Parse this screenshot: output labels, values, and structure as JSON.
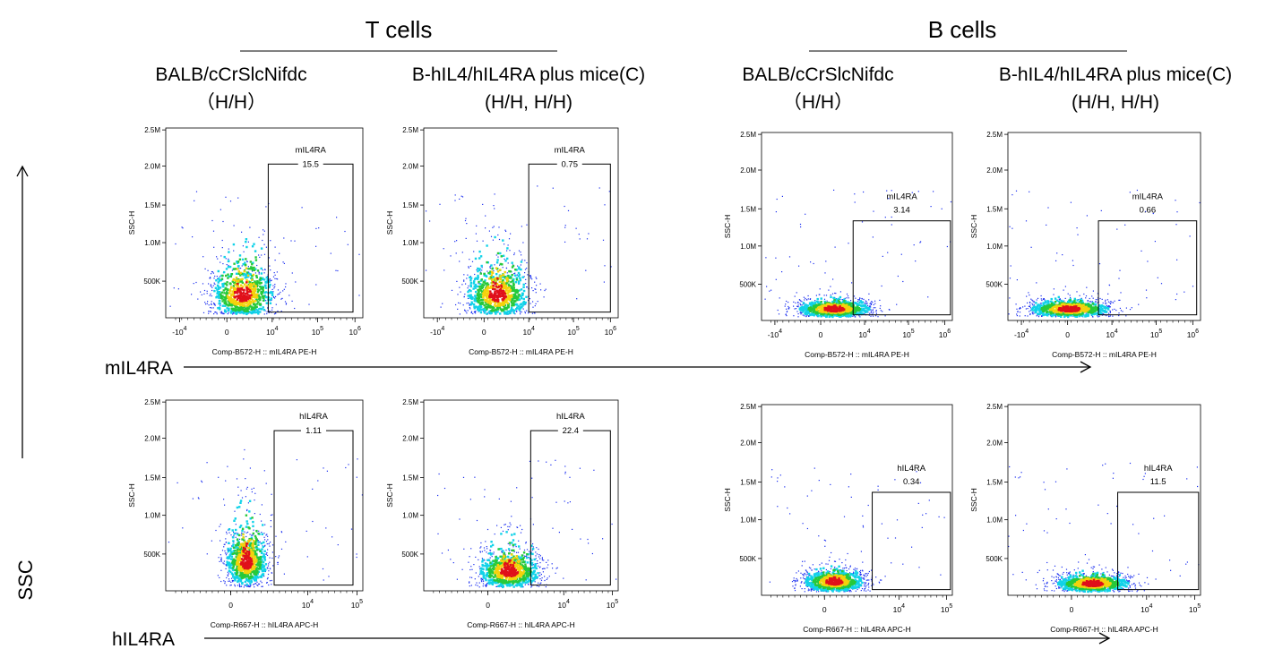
{
  "groups": [
    {
      "title": "T cells"
    },
    {
      "title": "B cells"
    }
  ],
  "columns": [
    {
      "line1": "BALB/cCrSlcNifdc",
      "line2": "（H/H）"
    },
    {
      "line1": "B-hIL4/hIL4RA plus mice(C)",
      "line2": "(H/H, H/H)"
    },
    {
      "line1": "BALB/cCrSlcNifdc",
      "line2": "（H/H）"
    },
    {
      "line1": "B-hIL4/hIL4RA plus mice(C)",
      "line2": "(H/H, H/H)"
    }
  ],
  "y_arrow_label": "SSC",
  "y_label": "SSC-H",
  "y_ticks": [
    "2.5M",
    "2.0M",
    "1.5M",
    "1.0M",
    "500K"
  ],
  "rows": [
    {
      "marker": "mIL4RA",
      "x_label": "Comp-B572-H :: mIL4RA PE-H",
      "gate_name": "mIL4RA",
      "x_ticks": [
        {
          "base": "-10",
          "sup": "4"
        },
        {
          "base": "0"
        },
        {
          "base": "10",
          "sup": "4"
        },
        {
          "base": "10",
          "sup": "5"
        },
        {
          "base": "10",
          "sup": "6"
        }
      ],
      "gate_values": [
        15.5,
        0.75,
        3.14,
        0.66
      ]
    },
    {
      "marker": "hIL4RA",
      "x_label": "Comp-R667-H :: hIL4RA APC-H",
      "gate_name": "hIL4RA",
      "x_ticks": [
        {
          "base": "0"
        },
        {
          "base": "10",
          "sup": "4"
        },
        {
          "base": "10",
          "sup": "5"
        }
      ],
      "gate_values": [
        1.11,
        22.4,
        0.34,
        11.5
      ]
    }
  ]
}
